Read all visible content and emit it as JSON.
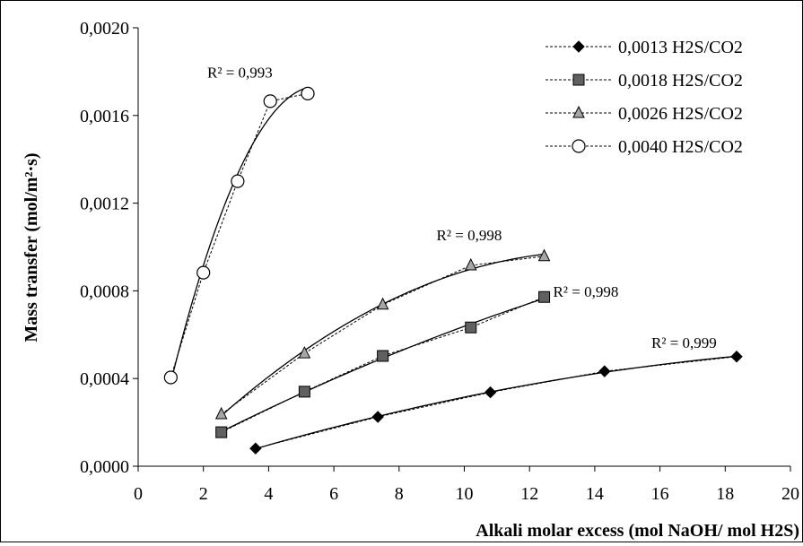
{
  "chart_data": {
    "type": "scatter",
    "title": "",
    "xlabel": "Alkali molar excess (mol NaOH/ mol H2S)",
    "ylabel": "Mass transfer (mol/m²·s)",
    "xlim": [
      0,
      20
    ],
    "ylim": [
      0,
      0.002
    ],
    "x_ticks": [
      "0",
      "2",
      "4",
      "6",
      "8",
      "10",
      "12",
      "14",
      "16",
      "18",
      "20"
    ],
    "y_ticks": [
      "0,0000",
      "0,0004",
      "0,0008",
      "0,0012",
      "0,0016",
      "0,0020"
    ],
    "grid": false,
    "legend_position": "top-right",
    "series": [
      {
        "name": "0,0013 H2S/CO2",
        "marker": "diamond",
        "color": "#000000",
        "x": [
          3.6,
          7.35,
          10.8,
          14.3,
          18.35
        ],
        "y": [
          8.1e-05,
          0.000225,
          0.000337,
          0.000433,
          0.0005
        ],
        "r2_label": "R² = 0,999"
      },
      {
        "name": "0,0018 H2S/CO2",
        "marker": "square",
        "color": "#606060",
        "x": [
          2.55,
          5.1,
          7.5,
          10.2,
          12.45
        ],
        "y": [
          0.000155,
          0.00034,
          0.000503,
          0.000633,
          0.000772
        ],
        "r2_label": "R² = 0,998"
      },
      {
        "name": "0,0026 H2S/CO2",
        "marker": "triangle",
        "color": "#a6a6a6",
        "x": [
          2.55,
          5.1,
          7.5,
          10.2,
          12.45
        ],
        "y": [
          0.000237,
          0.000515,
          0.000737,
          0.000916,
          0.000958
        ],
        "r2_label": "R² = 0,998"
      },
      {
        "name": "0,0040 H2S/CO2",
        "marker": "circle",
        "color": "#ffffff",
        "x": [
          1.0,
          2.0,
          3.05,
          4.05,
          5.2
        ],
        "y": [
          0.000405,
          0.000883,
          0.0013,
          0.001665,
          0.0017
        ],
        "r2_label": "R² = 0,993"
      }
    ]
  }
}
